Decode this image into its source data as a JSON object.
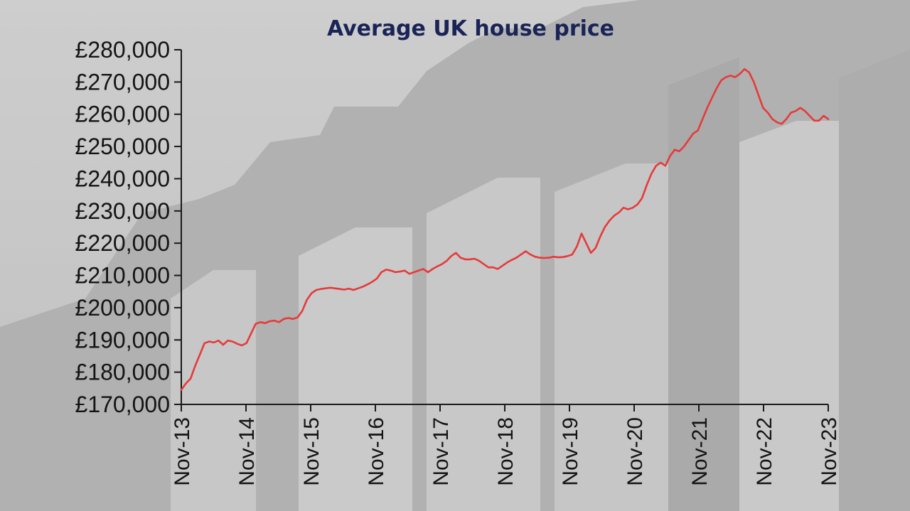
{
  "chart_data": {
    "type": "line",
    "title": "Average UK house price",
    "xlabel": "",
    "ylabel": "",
    "ylim": [
      170000,
      280000
    ],
    "y_ticks": [
      "£170,000",
      "£180,000",
      "£190,000",
      "£200,000",
      "£210,000",
      "£220,000",
      "£230,000",
      "£240,000",
      "£250,000",
      "£260,000",
      "£270,000",
      "£280,000"
    ],
    "x_ticks": [
      "Nov-13",
      "Nov-14",
      "Nov-15",
      "Nov-16",
      "Nov-17",
      "Nov-18",
      "Nov-19",
      "Nov-20",
      "Nov-21",
      "Nov-22",
      "Nov-23"
    ],
    "grid": false,
    "line_color": "#e63a3a",
    "series": [
      {
        "values": [
          174500,
          176500,
          178000,
          182000,
          185500,
          189000,
          189500,
          189200,
          189800,
          188500,
          189800,
          189500,
          188800,
          188300,
          189000,
          192000,
          195000,
          195500,
          195200,
          195800,
          196000,
          195500,
          196500,
          196800,
          196500,
          197000,
          199000,
          202500,
          204500,
          205500,
          205800,
          206000,
          206200,
          206000,
          205800,
          205600,
          205900,
          205500,
          206000,
          206500,
          207200,
          208000,
          209000,
          211000,
          211800,
          211500,
          211000,
          211200,
          211500,
          210500,
          211000,
          211500,
          212000,
          211000,
          212000,
          212800,
          213500,
          214500,
          216000,
          217000,
          215500,
          215000,
          215000,
          215200,
          214500,
          213500,
          212500,
          212500,
          212000,
          213000,
          214000,
          214800,
          215500,
          216500,
          217500,
          216500,
          215800,
          215500,
          215400,
          215500,
          215800,
          215600,
          215700,
          216000,
          216500,
          219000,
          223000,
          220000,
          217000,
          218500,
          222000,
          225000,
          227000,
          228500,
          229500,
          231000,
          230500,
          231000,
          232000,
          234000,
          238000,
          241500,
          244000,
          245000,
          244000,
          247000,
          249000,
          248500,
          250000,
          252000,
          254000,
          255000,
          258500,
          262000,
          265000,
          268000,
          270500,
          271500,
          272000,
          271500,
          272500,
          274000,
          273000,
          270000,
          266000,
          262000,
          260500,
          258500,
          257500,
          257000,
          258500,
          260500,
          261000,
          262000,
          261000,
          259500,
          258000,
          258000,
          259500,
          258500
        ]
      }
    ]
  }
}
